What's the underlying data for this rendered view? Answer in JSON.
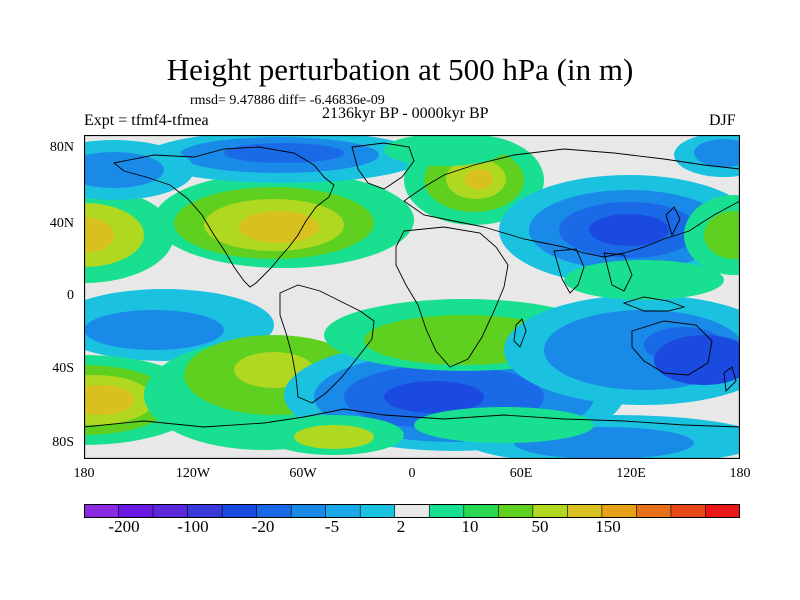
{
  "title": "Height perturbation at 500 hPa (in m)",
  "stats": "rmsd= 9.47886 diff= -6.46836e-09",
  "experiment": "Expt = tfmf4-tfmea",
  "period": "2136kyr BP - 0000kyr BP",
  "season": "DJF",
  "lat_ticks": [
    "80N",
    "40N",
    "0",
    "40S",
    "80S"
  ],
  "lon_ticks": [
    "180",
    "120W",
    "60W",
    "0",
    "60E",
    "120E",
    "180"
  ],
  "colorbar": {
    "colors": [
      "#8a2be2",
      "#6a1ae0",
      "#5a2ad8",
      "#3a3ad8",
      "#1a4ae0",
      "#1a6ae8",
      "#1a8ae8",
      "#1aa8e8",
      "#1ac2e0",
      "#e8e8e8",
      "#18e090",
      "#28d850",
      "#60d020",
      "#b0d820",
      "#d8c020",
      "#e8a018",
      "#e87018",
      "#e84818",
      "#e81818"
    ],
    "labels": [
      "-200",
      "-100",
      "-20",
      "-5",
      "2",
      "10",
      "50",
      "150"
    ]
  },
  "field_colors": {
    "strong_neg": "#1a4ae0",
    "neg": "#1a6ae8",
    "weak_neg": "#1a8ae8",
    "faint_neg": "#1ac2e0",
    "neutral": "#e8e8e8",
    "faint_pos": "#18e090",
    "weak_pos": "#60d020",
    "pos": "#b0d820",
    "strong_pos": "#d8c020",
    "peak_pos": "#e8a018"
  }
}
